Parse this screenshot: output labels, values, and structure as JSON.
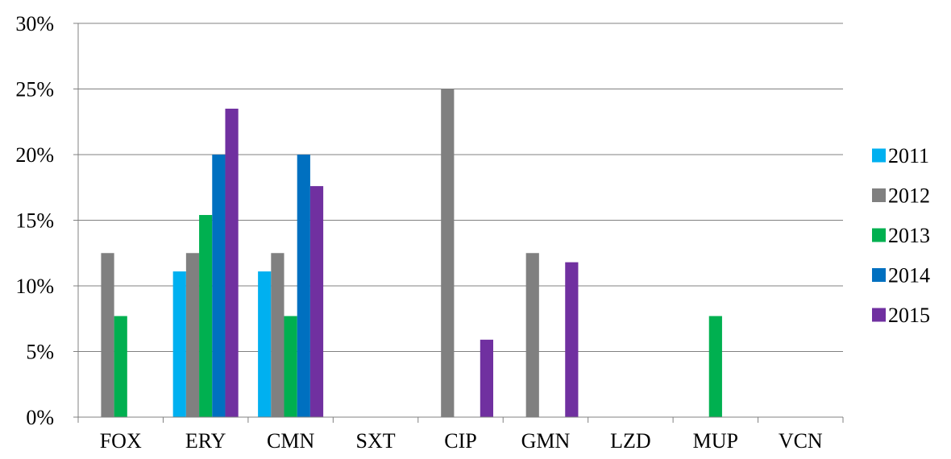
{
  "chart_data": {
    "type": "bar",
    "title": "",
    "xlabel": "",
    "ylabel": "",
    "categories": [
      "FOX",
      "ERY",
      "CMN",
      "SXT",
      "CIP",
      "GMN",
      "LZD",
      "MUP",
      "VCN"
    ],
    "series": [
      {
        "name": "2011",
        "color": "#00b0f0",
        "values": [
          0,
          11.1,
          11.1,
          0,
          0,
          0,
          0,
          0,
          0
        ]
      },
      {
        "name": "2012",
        "color": "#808080",
        "values": [
          12.5,
          12.5,
          12.5,
          0,
          25.0,
          12.5,
          0,
          0,
          0
        ]
      },
      {
        "name": "2013",
        "color": "#00b050",
        "values": [
          7.7,
          15.4,
          7.7,
          0,
          0,
          0,
          0,
          7.7,
          0
        ]
      },
      {
        "name": "2014",
        "color": "#0070c0",
        "values": [
          0,
          20.0,
          20.0,
          0,
          0,
          0,
          0,
          0,
          0
        ]
      },
      {
        "name": "2015",
        "color": "#7030a0",
        "values": [
          0,
          23.5,
          17.6,
          0,
          5.9,
          11.8,
          0,
          0,
          0
        ]
      }
    ],
    "ylim": [
      0,
      30
    ],
    "yticks": [
      0,
      5,
      10,
      15,
      20,
      25,
      30
    ],
    "ytick_labels": [
      "0%",
      "5%",
      "10%",
      "15%",
      "20%",
      "25%",
      "30%"
    ],
    "grid": true,
    "legend_position": "right"
  }
}
